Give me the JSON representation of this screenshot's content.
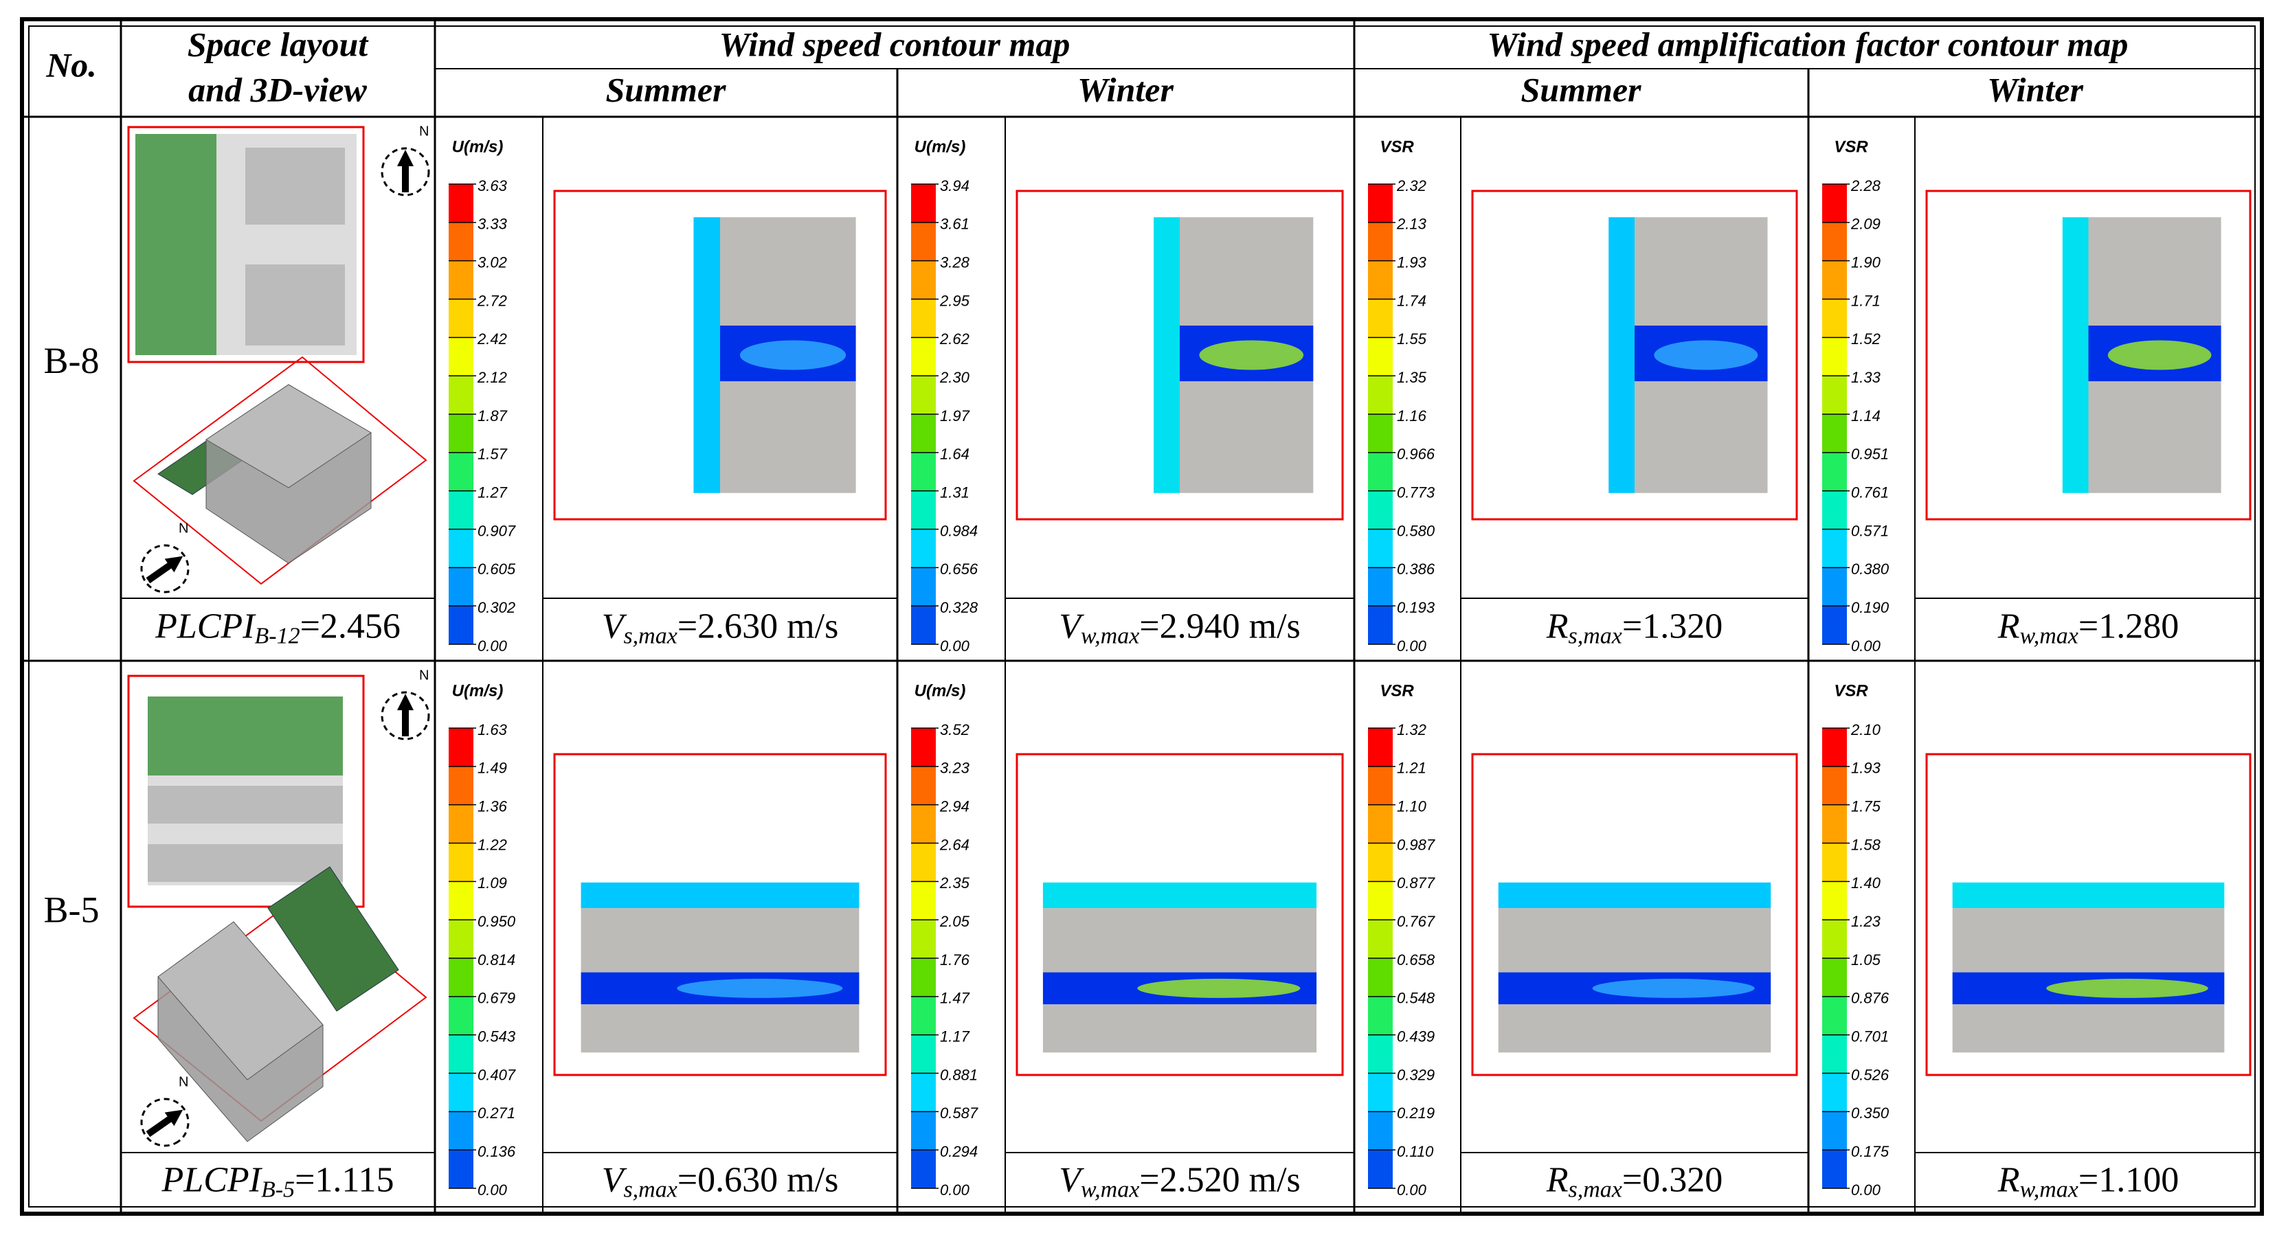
{
  "header": {
    "no": "No.",
    "space_layout": [
      "Space layout",
      "and 3D-view"
    ],
    "wind_speed": "Wind speed contour map",
    "amplification": "Wind speed amplification factor contour map",
    "seasons": [
      "Summer",
      "Winter",
      "Summer",
      "Winter"
    ]
  },
  "compass_label": "N",
  "rows": [
    {
      "id": "B-8",
      "plcpi": {
        "symbol": "PLCPI",
        "subscript": "B-12",
        "text": "=2.456"
      },
      "panels": [
        {
          "legend_title": "U(m/s)",
          "ticks": [
            "3.63",
            "3.33",
            "3.02",
            "2.72",
            "2.42",
            "2.12",
            "1.87",
            "1.57",
            "1.27",
            "0.907",
            "0.605",
            "0.302",
            "0.00"
          ],
          "result": {
            "symbol": "V",
            "subscript": "s,max",
            "text": "=2.630 m/s"
          }
        },
        {
          "legend_title": "U(m/s)",
          "ticks": [
            "3.94",
            "3.61",
            "3.28",
            "2.95",
            "2.62",
            "2.30",
            "1.97",
            "1.64",
            "1.31",
            "0.984",
            "0.656",
            "0.328",
            "0.00"
          ],
          "result": {
            "symbol": "V",
            "subscript": "w,max",
            "text": "=2.940 m/s"
          }
        },
        {
          "legend_title": "VSR",
          "ticks": [
            "2.32",
            "2.13",
            "1.93",
            "1.74",
            "1.55",
            "1.35",
            "1.16",
            "0.966",
            "0.773",
            "0.580",
            "0.386",
            "0.193",
            "0.00"
          ],
          "result": {
            "symbol": "R",
            "subscript": "s,max",
            "text": "=1.320"
          }
        },
        {
          "legend_title": "VSR",
          "ticks": [
            "2.28",
            "2.09",
            "1.90",
            "1.71",
            "1.52",
            "1.33",
            "1.14",
            "0.951",
            "0.761",
            "0.571",
            "0.380",
            "0.190",
            "0.00"
          ],
          "result": {
            "symbol": "R",
            "subscript": "w,max",
            "text": "=1.280"
          }
        }
      ]
    },
    {
      "id": "B-5",
      "plcpi": {
        "symbol": "PLCPI",
        "subscript": "B-5",
        "text": "=1.115"
      },
      "panels": [
        {
          "legend_title": "U(m/s)",
          "ticks": [
            "1.63",
            "1.49",
            "1.36",
            "1.22",
            "1.09",
            "0.950",
            "0.814",
            "0.679",
            "0.543",
            "0.407",
            "0.271",
            "0.136",
            "0.00"
          ],
          "result": {
            "symbol": "V",
            "subscript": "s,max",
            "text": "=0.630 m/s"
          }
        },
        {
          "legend_title": "U(m/s)",
          "ticks": [
            "3.52",
            "3.23",
            "2.94",
            "2.64",
            "2.35",
            "2.05",
            "1.76",
            "1.47",
            "1.17",
            "0.881",
            "0.587",
            "0.294",
            "0.00"
          ],
          "result": {
            "symbol": "V",
            "subscript": "w,max",
            "text": "=2.520 m/s"
          }
        },
        {
          "legend_title": "VSR",
          "ticks": [
            "1.32",
            "1.21",
            "1.10",
            "0.987",
            "0.877",
            "0.767",
            "0.658",
            "0.548",
            "0.439",
            "0.329",
            "0.219",
            "0.110",
            "0.00"
          ],
          "result": {
            "symbol": "R",
            "subscript": "s,max",
            "text": "=0.320"
          }
        },
        {
          "legend_title": "VSR",
          "ticks": [
            "2.10",
            "1.93",
            "1.75",
            "1.58",
            "1.40",
            "1.23",
            "1.05",
            "0.876",
            "0.701",
            "0.526",
            "0.350",
            "0.175",
            "0.00"
          ],
          "result": {
            "symbol": "R",
            "subscript": "w,max",
            "text": "=1.100"
          }
        }
      ]
    }
  ]
}
